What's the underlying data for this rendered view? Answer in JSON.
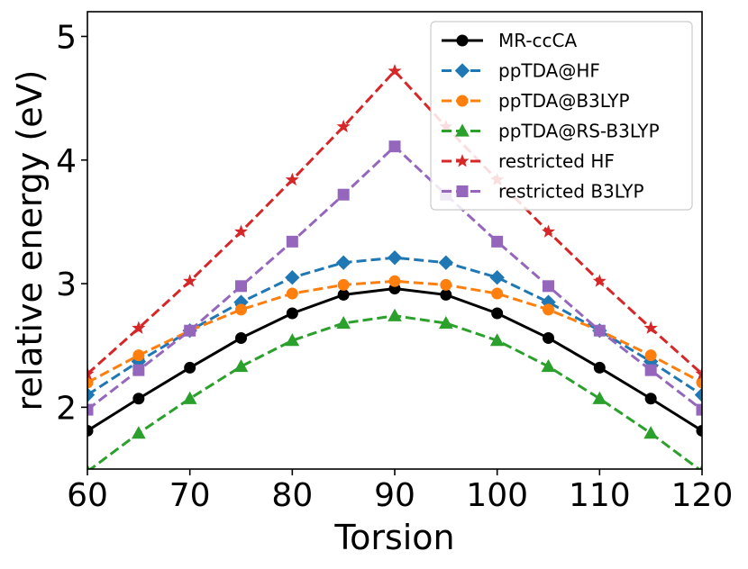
{
  "chart_data": {
    "type": "line",
    "xlabel": "Torsion",
    "ylabel": "relative energy (eV)",
    "xlim": [
      60,
      120
    ],
    "ylim": [
      1.5,
      5.2
    ],
    "xticks": [
      60,
      70,
      80,
      90,
      100,
      110,
      120
    ],
    "yticks": [
      2,
      3,
      4,
      5
    ],
    "legend_position": "top-right",
    "x": [
      60,
      65,
      70,
      75,
      80,
      85,
      90,
      95,
      100,
      105,
      110,
      115,
      120
    ],
    "series": [
      {
        "name": "MR-ccCA",
        "color": "#000000",
        "marker": "circle",
        "dash": "solid",
        "values": [
          1.81,
          2.07,
          2.32,
          2.56,
          2.76,
          2.91,
          2.96,
          2.91,
          2.76,
          2.56,
          2.32,
          2.07,
          1.81
        ]
      },
      {
        "name": "ppTDA@HF",
        "color": "#1f77b4",
        "marker": "diamond",
        "dash": "dashed",
        "values": [
          2.1,
          2.37,
          2.62,
          2.85,
          3.05,
          3.17,
          3.21,
          3.17,
          3.05,
          2.85,
          2.62,
          2.37,
          2.1
        ]
      },
      {
        "name": "ppTDA@B3LYP",
        "color": "#ff7f0e",
        "marker": "circle",
        "dash": "dashed",
        "values": [
          2.2,
          2.42,
          2.62,
          2.79,
          2.92,
          2.99,
          3.02,
          2.99,
          2.92,
          2.79,
          2.62,
          2.42,
          2.2
        ]
      },
      {
        "name": "ppTDA@RS-B3LYP",
        "color": "#2ca02c",
        "marker": "triangle",
        "dash": "dashed",
        "values": [
          1.48,
          1.79,
          2.07,
          2.33,
          2.54,
          2.68,
          2.74,
          2.68,
          2.54,
          2.33,
          2.07,
          1.79,
          1.48
        ]
      },
      {
        "name": "restricted HF",
        "color": "#d62728",
        "marker": "star",
        "dash": "dashed",
        "values": [
          2.27,
          2.64,
          3.02,
          3.42,
          3.84,
          4.27,
          4.72,
          4.27,
          3.84,
          3.42,
          3.02,
          2.64,
          2.27
        ]
      },
      {
        "name": "restricted B3LYP",
        "color": "#9467bd",
        "marker": "square",
        "dash": "dashed",
        "values": [
          1.98,
          2.3,
          2.62,
          2.98,
          3.34,
          3.72,
          4.11,
          3.72,
          3.34,
          2.98,
          2.62,
          2.3,
          1.98
        ]
      }
    ]
  }
}
